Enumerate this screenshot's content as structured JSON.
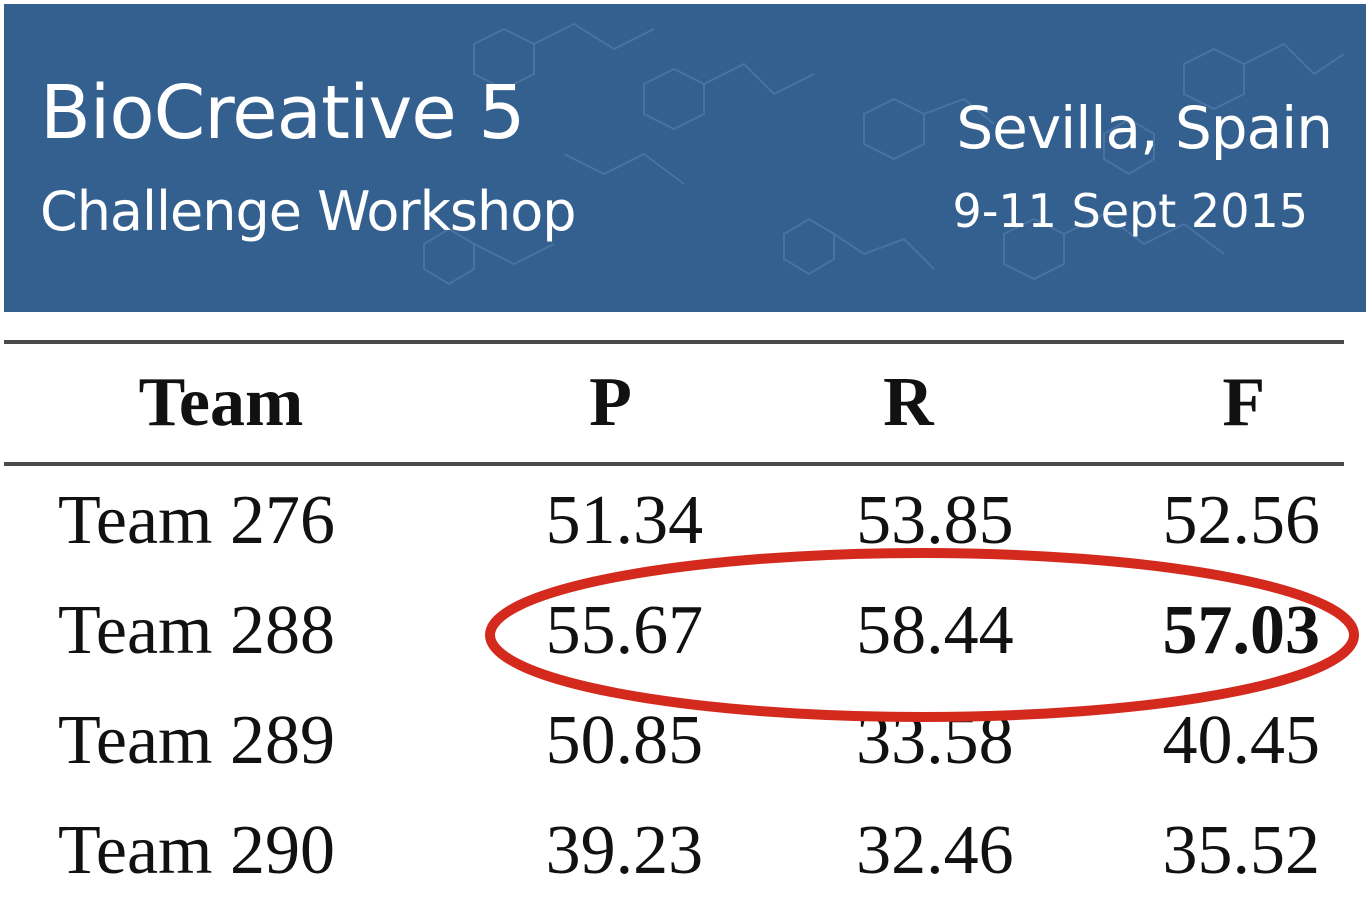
{
  "banner": {
    "title": "BioCreative 5",
    "subtitle": "Challenge Workshop",
    "location": "Sevilla, Spain",
    "dates": "9-11 Sept 2015",
    "background_color": "#34608f"
  },
  "table": {
    "headers": [
      "Team",
      "P",
      "R",
      "F"
    ],
    "rows": [
      [
        "Team 276",
        "51.34",
        "53.85",
        "52.56"
      ],
      [
        "Team 288",
        "55.67",
        "58.44",
        "57.03"
      ],
      [
        "Team 289",
        "50.85",
        "33.58",
        "40.45"
      ],
      [
        "Team 290",
        "39.23",
        "32.46",
        "35.52"
      ]
    ],
    "bold_cell": "Team 288 F"
  },
  "highlight": {
    "color": "#d42a1e",
    "shape": "ellipse",
    "target_row": "Team 288"
  }
}
